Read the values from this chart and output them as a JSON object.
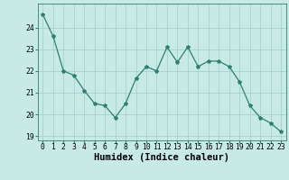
{
  "x": [
    0,
    1,
    2,
    3,
    4,
    5,
    6,
    7,
    8,
    9,
    10,
    11,
    12,
    13,
    14,
    15,
    16,
    17,
    18,
    19,
    20,
    21,
    22,
    23
  ],
  "y": [
    24.6,
    23.6,
    22.0,
    21.8,
    21.1,
    20.5,
    20.4,
    19.85,
    20.5,
    21.65,
    22.2,
    22.0,
    23.1,
    22.4,
    23.1,
    22.2,
    22.45,
    22.45,
    22.2,
    21.5,
    20.4,
    19.85,
    19.6,
    19.2
  ],
  "xlabel": "Humidex (Indice chaleur)",
  "xlim": [
    -0.5,
    23.5
  ],
  "ylim": [
    18.8,
    25.1
  ],
  "yticks": [
    19,
    20,
    21,
    22,
    23,
    24
  ],
  "xticks": [
    0,
    1,
    2,
    3,
    4,
    5,
    6,
    7,
    8,
    9,
    10,
    11,
    12,
    13,
    14,
    15,
    16,
    17,
    18,
    19,
    20,
    21,
    22,
    23
  ],
  "line_color": "#2e7f6e",
  "marker": "*",
  "bg_color": "#c8eae6",
  "grid_color": "#a0ccc8",
  "xlabel_fontsize": 7.5,
  "tick_fontsize": 5.8
}
